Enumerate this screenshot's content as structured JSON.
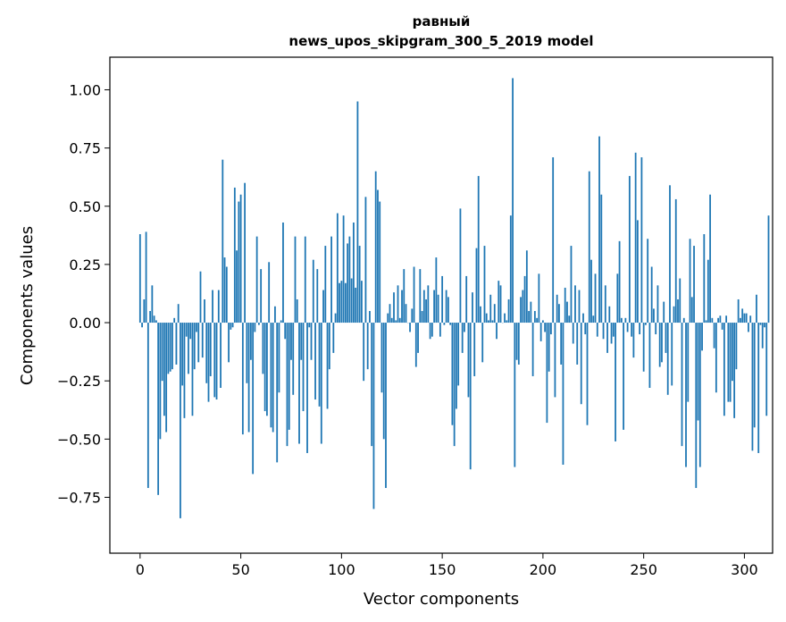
{
  "chart_data": {
    "type": "bar",
    "title": "равный",
    "subtitle": "news_upos_skipgram_300_5_2019 model",
    "xlabel": "Vector components",
    "ylabel": "Components values",
    "xlim": [
      -15,
      314
    ],
    "ylim": [
      -0.99,
      1.14
    ],
    "xticks": [
      0,
      50,
      100,
      150,
      200,
      250,
      300
    ],
    "yticks": [
      -0.75,
      -0.5,
      -0.25,
      0.0,
      0.25,
      0.5,
      0.75,
      1.0
    ],
    "xtick_labels": [
      "0",
      "50",
      "100",
      "150",
      "200",
      "250",
      "300"
    ],
    "ytick_labels": [
      "−0.75",
      "−0.50",
      "−0.25",
      "0.00",
      "0.25",
      "0.50",
      "0.75",
      "1.00"
    ],
    "color": "#1f77b4",
    "values": [
      0.38,
      -0.02,
      0.1,
      0.39,
      -0.71,
      0.05,
      0.16,
      0.03,
      0.01,
      -0.74,
      -0.5,
      -0.25,
      -0.4,
      -0.47,
      -0.22,
      -0.21,
      -0.2,
      0.02,
      -0.18,
      0.08,
      -0.84,
      -0.27,
      -0.41,
      -0.06,
      -0.22,
      -0.07,
      -0.4,
      -0.2,
      -0.04,
      -0.17,
      0.22,
      -0.15,
      0.1,
      -0.26,
      -0.34,
      -0.23,
      0.14,
      -0.32,
      -0.33,
      0.14,
      -0.28,
      0.7,
      0.28,
      0.24,
      -0.17,
      -0.03,
      -0.02,
      0.58,
      0.31,
      0.52,
      0.55,
      -0.48,
      0.6,
      -0.26,
      -0.47,
      -0.16,
      -0.65,
      -0.04,
      0.37,
      -0.01,
      0.23,
      -0.22,
      -0.38,
      -0.4,
      0.26,
      -0.45,
      -0.47,
      0.07,
      -0.6,
      -0.3,
      0.01,
      0.43,
      -0.07,
      -0.53,
      -0.46,
      -0.16,
      -0.31,
      0.37,
      0.1,
      -0.52,
      -0.16,
      -0.38,
      0.37,
      -0.56,
      -0.02,
      -0.16,
      0.27,
      -0.33,
      0.23,
      -0.36,
      -0.52,
      0.14,
      0.33,
      -0.37,
      -0.2,
      0.37,
      -0.13,
      0.04,
      0.47,
      0.17,
      0.18,
      0.46,
      0.17,
      0.34,
      0.37,
      0.19,
      0.43,
      0.15,
      0.95,
      0.33,
      0.18,
      -0.25,
      0.54,
      -0.2,
      0.05,
      -0.53,
      -0.8,
      0.65,
      0.57,
      0.52,
      -0.3,
      -0.5,
      -0.71,
      0.04,
      0.08,
      0.02,
      0.13,
      0.01,
      0.16,
      0.02,
      0.14,
      0.23,
      0.08,
      0.0,
      -0.04,
      0.06,
      0.24,
      -0.19,
      -0.13,
      0.23,
      0.05,
      0.14,
      0.1,
      0.16,
      -0.07,
      -0.06,
      0.14,
      0.28,
      0.12,
      -0.06,
      0.2,
      -0.01,
      0.14,
      0.11,
      -0.01,
      -0.44,
      -0.53,
      -0.37,
      -0.27,
      0.49,
      -0.13,
      -0.04,
      0.2,
      -0.32,
      -0.63,
      0.13,
      -0.23,
      0.32,
      0.63,
      0.07,
      -0.17,
      0.33,
      0.04,
      0.01,
      0.12,
      0.01,
      0.08,
      -0.07,
      0.18,
      0.16,
      0.0,
      0.04,
      0.01,
      0.1,
      0.46,
      1.05,
      -0.62,
      -0.16,
      -0.18,
      0.11,
      0.14,
      0.2,
      0.31,
      0.05,
      0.09,
      -0.23,
      0.05,
      0.02,
      0.21,
      -0.08,
      0.01,
      -0.04,
      -0.43,
      -0.21,
      -0.05,
      0.71,
      -0.32,
      0.12,
      0.08,
      -0.18,
      -0.61,
      0.15,
      0.09,
      0.03,
      0.33,
      -0.09,
      0.16,
      -0.18,
      0.14,
      -0.35,
      0.04,
      -0.05,
      -0.44,
      0.65,
      0.27,
      0.03,
      0.21,
      -0.06,
      0.8,
      0.55,
      -0.07,
      0.16,
      -0.13,
      0.07,
      -0.09,
      -0.06,
      -0.51,
      0.21,
      0.35,
      0.02,
      -0.46,
      0.02,
      -0.04,
      0.63,
      -0.06,
      -0.15,
      0.73,
      0.44,
      -0.05,
      0.71,
      -0.21,
      -0.01,
      0.36,
      -0.28,
      0.24,
      0.06,
      -0.05,
      0.16,
      -0.19,
      -0.17,
      0.09,
      -0.13,
      -0.31,
      0.59,
      -0.27,
      0.07,
      0.53,
      0.1,
      0.19,
      -0.53,
      0.02,
      -0.62,
      -0.34,
      0.36,
      0.11,
      0.33,
      -0.71,
      -0.42,
      -0.62,
      -0.12,
      0.38,
      0.01,
      0.27,
      0.55,
      0.02,
      -0.11,
      -0.3,
      0.02,
      0.03,
      -0.03,
      -0.4,
      0.03,
      -0.34,
      -0.34,
      -0.25,
      -0.41,
      -0.2,
      0.1,
      0.02,
      0.06,
      0.04,
      0.04,
      -0.04,
      0.03,
      -0.55,
      -0.45,
      0.12,
      -0.56,
      -0.01,
      -0.11,
      -0.02,
      -0.4,
      0.46
    ]
  }
}
